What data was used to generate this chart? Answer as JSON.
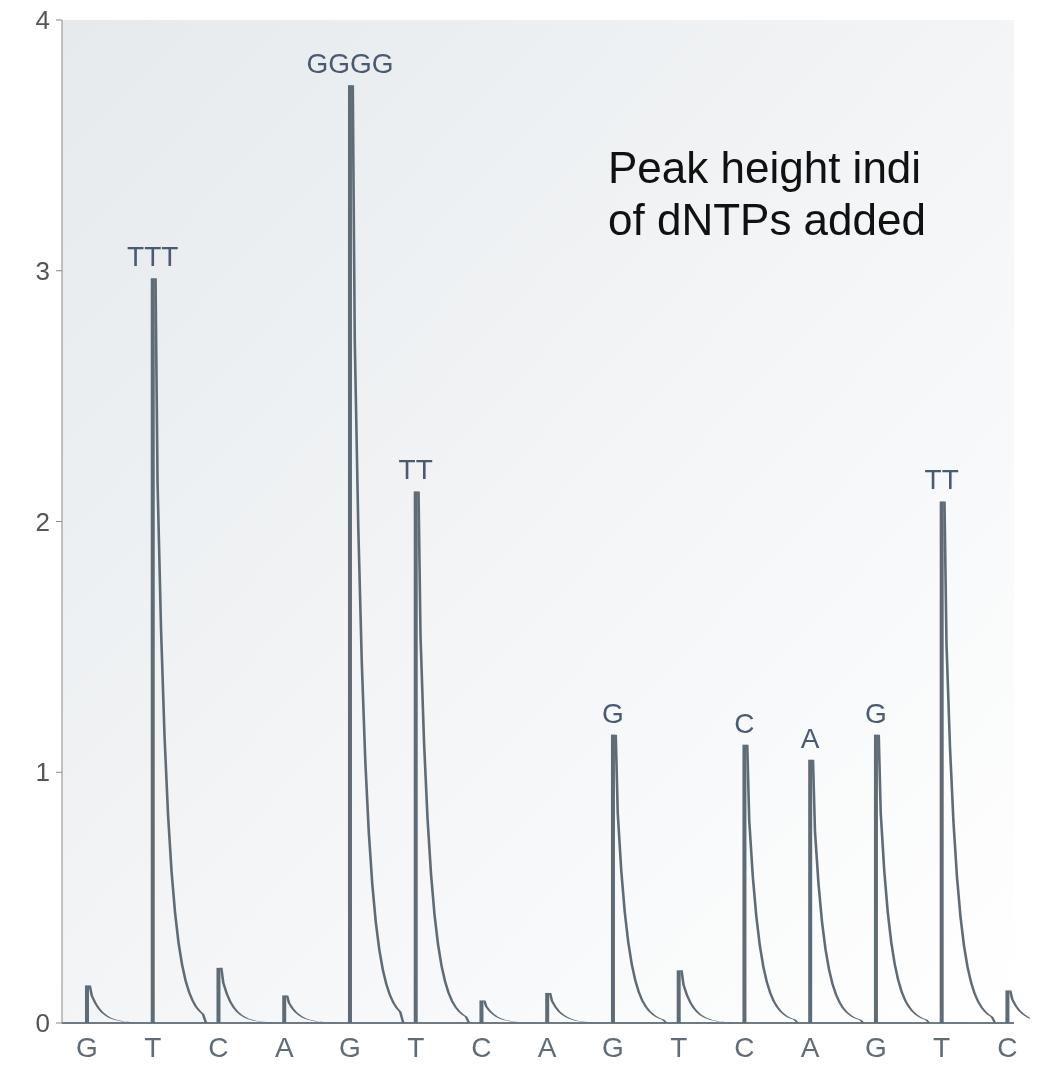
{
  "chart_data": {
    "type": "bar",
    "annotations": [
      "Peak height indi\nof dNTPs added"
    ],
    "categories": [
      "G",
      "T",
      "C",
      "A",
      "G",
      "T",
      "C",
      "A",
      "G",
      "T",
      "C",
      "A",
      "G",
      "T",
      "C"
    ],
    "ylim": [
      0,
      4
    ],
    "yticks": [
      0,
      1,
      2,
      3,
      4
    ],
    "grid": false,
    "series": [
      {
        "color": "#5f6b75",
        "values": [
          0.15,
          2.97,
          0.22,
          0.11,
          3.74,
          2.12,
          0.09,
          0.12,
          1.15,
          0.21,
          1.11,
          1.05,
          1.15,
          2.08,
          0.13
        ],
        "value_labels": [
          null,
          "TTT",
          null,
          null,
          "GGGG",
          "TT",
          null,
          null,
          "G",
          null,
          "C",
          "A",
          "G",
          "TT",
          null
        ]
      }
    ]
  }
}
